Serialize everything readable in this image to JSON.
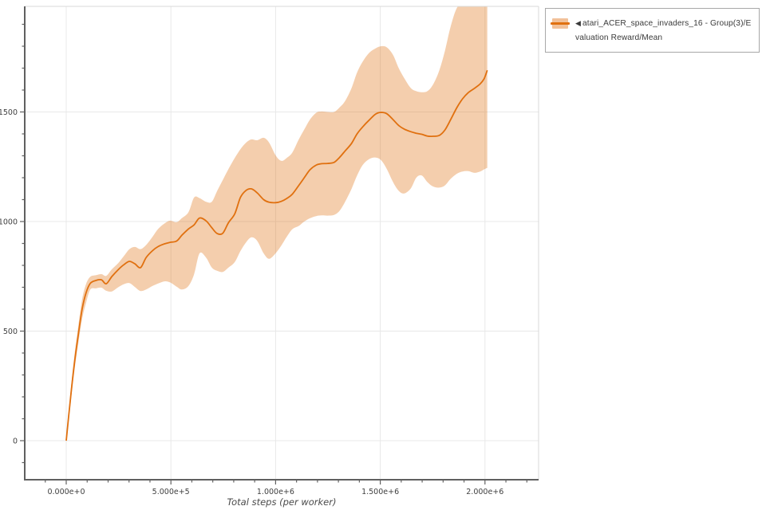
{
  "legend": {
    "collapse_icon": "◀",
    "label": "atari_ACER_space_invaders_16 - Group(3)/Evaluation Reward/Mean",
    "series_color": "#e0700f",
    "swatch_band_color": "#f2c199"
  },
  "chart_data": {
    "type": "line",
    "title": "",
    "xlabel": "Total steps (per worker)",
    "ylabel": "",
    "legend_position": "top-right-outside",
    "grid": true,
    "xlim": [
      -198000,
      2256000
    ],
    "ylim": [
      -178,
      1982
    ],
    "x_tick_labels": [
      "0.000e+0",
      "5.000e+5",
      "1.000e+6",
      "1.500e+6",
      "2.000e+6"
    ],
    "x_tick_values": [
      0,
      500000,
      1000000,
      1500000,
      2000000
    ],
    "y_tick_labels": [
      "0",
      "500",
      "1000",
      "1500"
    ],
    "y_tick_values": [
      0,
      500,
      1000,
      1500
    ],
    "x_minor_step": 100000,
    "y_minor_step": 100,
    "line_color": "#e0700f",
    "band_fill": "rgba(224,112,15,0.34)",
    "grid_color": "#e8e8e8",
    "axis_color": "#606060",
    "series": [
      {
        "name": "atari_ACER_space_invaders_16 - Group(3)/Evaluation Reward/Mean",
        "x": [
          0,
          19000,
          38000,
          57000,
          76000,
          95000,
          115000,
          141000,
          168000,
          191000,
          218000,
          248000,
          275000,
          302000,
          328000,
          355000,
          382000,
          412000,
          439000,
          469000,
          496000,
          527000,
          553000,
          584000,
          611000,
          637000,
          668000,
          695000,
          721000,
          748000,
          775000,
          805000,
          832000,
          859000,
          885000,
          912000,
          943000,
          969000,
          1000000,
          1027000,
          1053000,
          1080000,
          1111000,
          1137000,
          1164000,
          1195000,
          1221000,
          1248000,
          1279000,
          1305000,
          1332000,
          1363000,
          1389000,
          1416000,
          1447000,
          1477000,
          1504000,
          1531000,
          1561000,
          1588000,
          1614000,
          1645000,
          1672000,
          1698000,
          1725000,
          1752000,
          1782000,
          1809000,
          1836000,
          1866000,
          1893000,
          1920000,
          1950000,
          1977000,
          1996000,
          2011000
        ],
        "mean": [
          0,
          180,
          345,
          480,
          600,
          675,
          718,
          731,
          734,
          716,
          749,
          780,
          803,
          818,
          807,
          790,
          836,
          867,
          886,
          898,
          905,
          911,
          938,
          966,
          985,
          1016,
          1003,
          972,
          945,
          947,
          995,
          1035,
          1110,
          1142,
          1149,
          1131,
          1100,
          1088,
          1086,
          1092,
          1105,
          1125,
          1165,
          1200,
          1236,
          1258,
          1264,
          1265,
          1270,
          1292,
          1322,
          1357,
          1400,
          1432,
          1463,
          1490,
          1498,
          1492,
          1465,
          1438,
          1422,
          1410,
          1403,
          1398,
          1390,
          1389,
          1393,
          1418,
          1465,
          1520,
          1560,
          1588,
          1608,
          1628,
          1652,
          1690
        ],
        "lower": [
          0,
          155,
          310,
          440,
          555,
          630,
          690,
          695,
          698,
          684,
          681,
          700,
          714,
          719,
          701,
          683,
          690,
          706,
          717,
          727,
          722,
          703,
          690,
          706,
          760,
          855,
          835,
          790,
          775,
          770,
          790,
          815,
          865,
          905,
          928,
          912,
          855,
          830,
          855,
          890,
          930,
          965,
          980,
          1000,
          1015,
          1025,
          1028,
          1027,
          1030,
          1048,
          1090,
          1150,
          1210,
          1258,
          1285,
          1292,
          1280,
          1240,
          1180,
          1140,
          1128,
          1150,
          1200,
          1210,
          1180,
          1160,
          1155,
          1165,
          1195,
          1218,
          1228,
          1230,
          1222,
          1228,
          1238,
          1245
        ],
        "upper": [
          10,
          205,
          380,
          520,
          645,
          715,
          748,
          755,
          760,
          752,
          782,
          810,
          842,
          874,
          884,
          874,
          893,
          930,
          966,
          991,
          1004,
          997,
          1016,
          1043,
          1110,
          1107,
          1090,
          1090,
          1140,
          1190,
          1240,
          1290,
          1330,
          1360,
          1375,
          1371,
          1382,
          1360,
          1302,
          1277,
          1290,
          1315,
          1375,
          1420,
          1465,
          1497,
          1502,
          1500,
          1500,
          1520,
          1550,
          1610,
          1680,
          1730,
          1770,
          1790,
          1800,
          1795,
          1760,
          1700,
          1655,
          1610,
          1595,
          1590,
          1595,
          1625,
          1690,
          1780,
          1890,
          1975,
          1990,
          1990,
          1990,
          1990,
          1990,
          1990
        ]
      }
    ]
  }
}
